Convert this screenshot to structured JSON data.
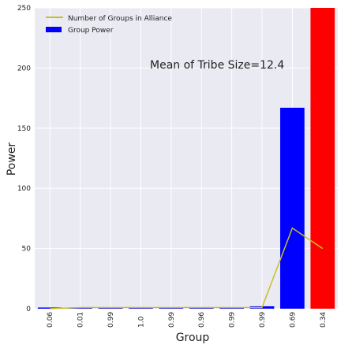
{
  "chart_data": {
    "type": "bar",
    "categories": [
      "0.06",
      "0.01",
      "0.99",
      "1.0",
      "0.99",
      "0.96",
      "0.99",
      "0.99",
      "0.69",
      "0.34"
    ],
    "series": [
      {
        "name": "Group Power",
        "kind": "bar",
        "values": [
          1,
          1,
          1,
          1,
          1,
          1,
          1,
          2,
          167,
          250
        ],
        "bar_colors": [
          "#0000ff",
          "#0000ff",
          "#0000ff",
          "#0000ff",
          "#0000ff",
          "#0000ff",
          "#0000ff",
          "#0000ff",
          "#0000ff",
          "#ff0000"
        ]
      },
      {
        "name": "Number of Groups in Alliance",
        "kind": "line",
        "color": "#c8be28",
        "values": [
          0,
          1,
          1,
          1,
          1,
          1,
          1,
          1,
          67,
          50
        ]
      }
    ],
    "annotation": "Mean of Tribe Size=12.4",
    "xlabel": "Group",
    "ylabel": "Power",
    "ylim": [
      0,
      250
    ],
    "yticks": [
      0,
      50,
      100,
      150,
      200,
      250
    ],
    "grid": true,
    "legend_position": "top-left",
    "colors": {
      "background": "#eaeaf2",
      "grid": "#ffffff",
      "bar_default": "#0000ff",
      "bar_highlight": "#ff0000"
    }
  }
}
